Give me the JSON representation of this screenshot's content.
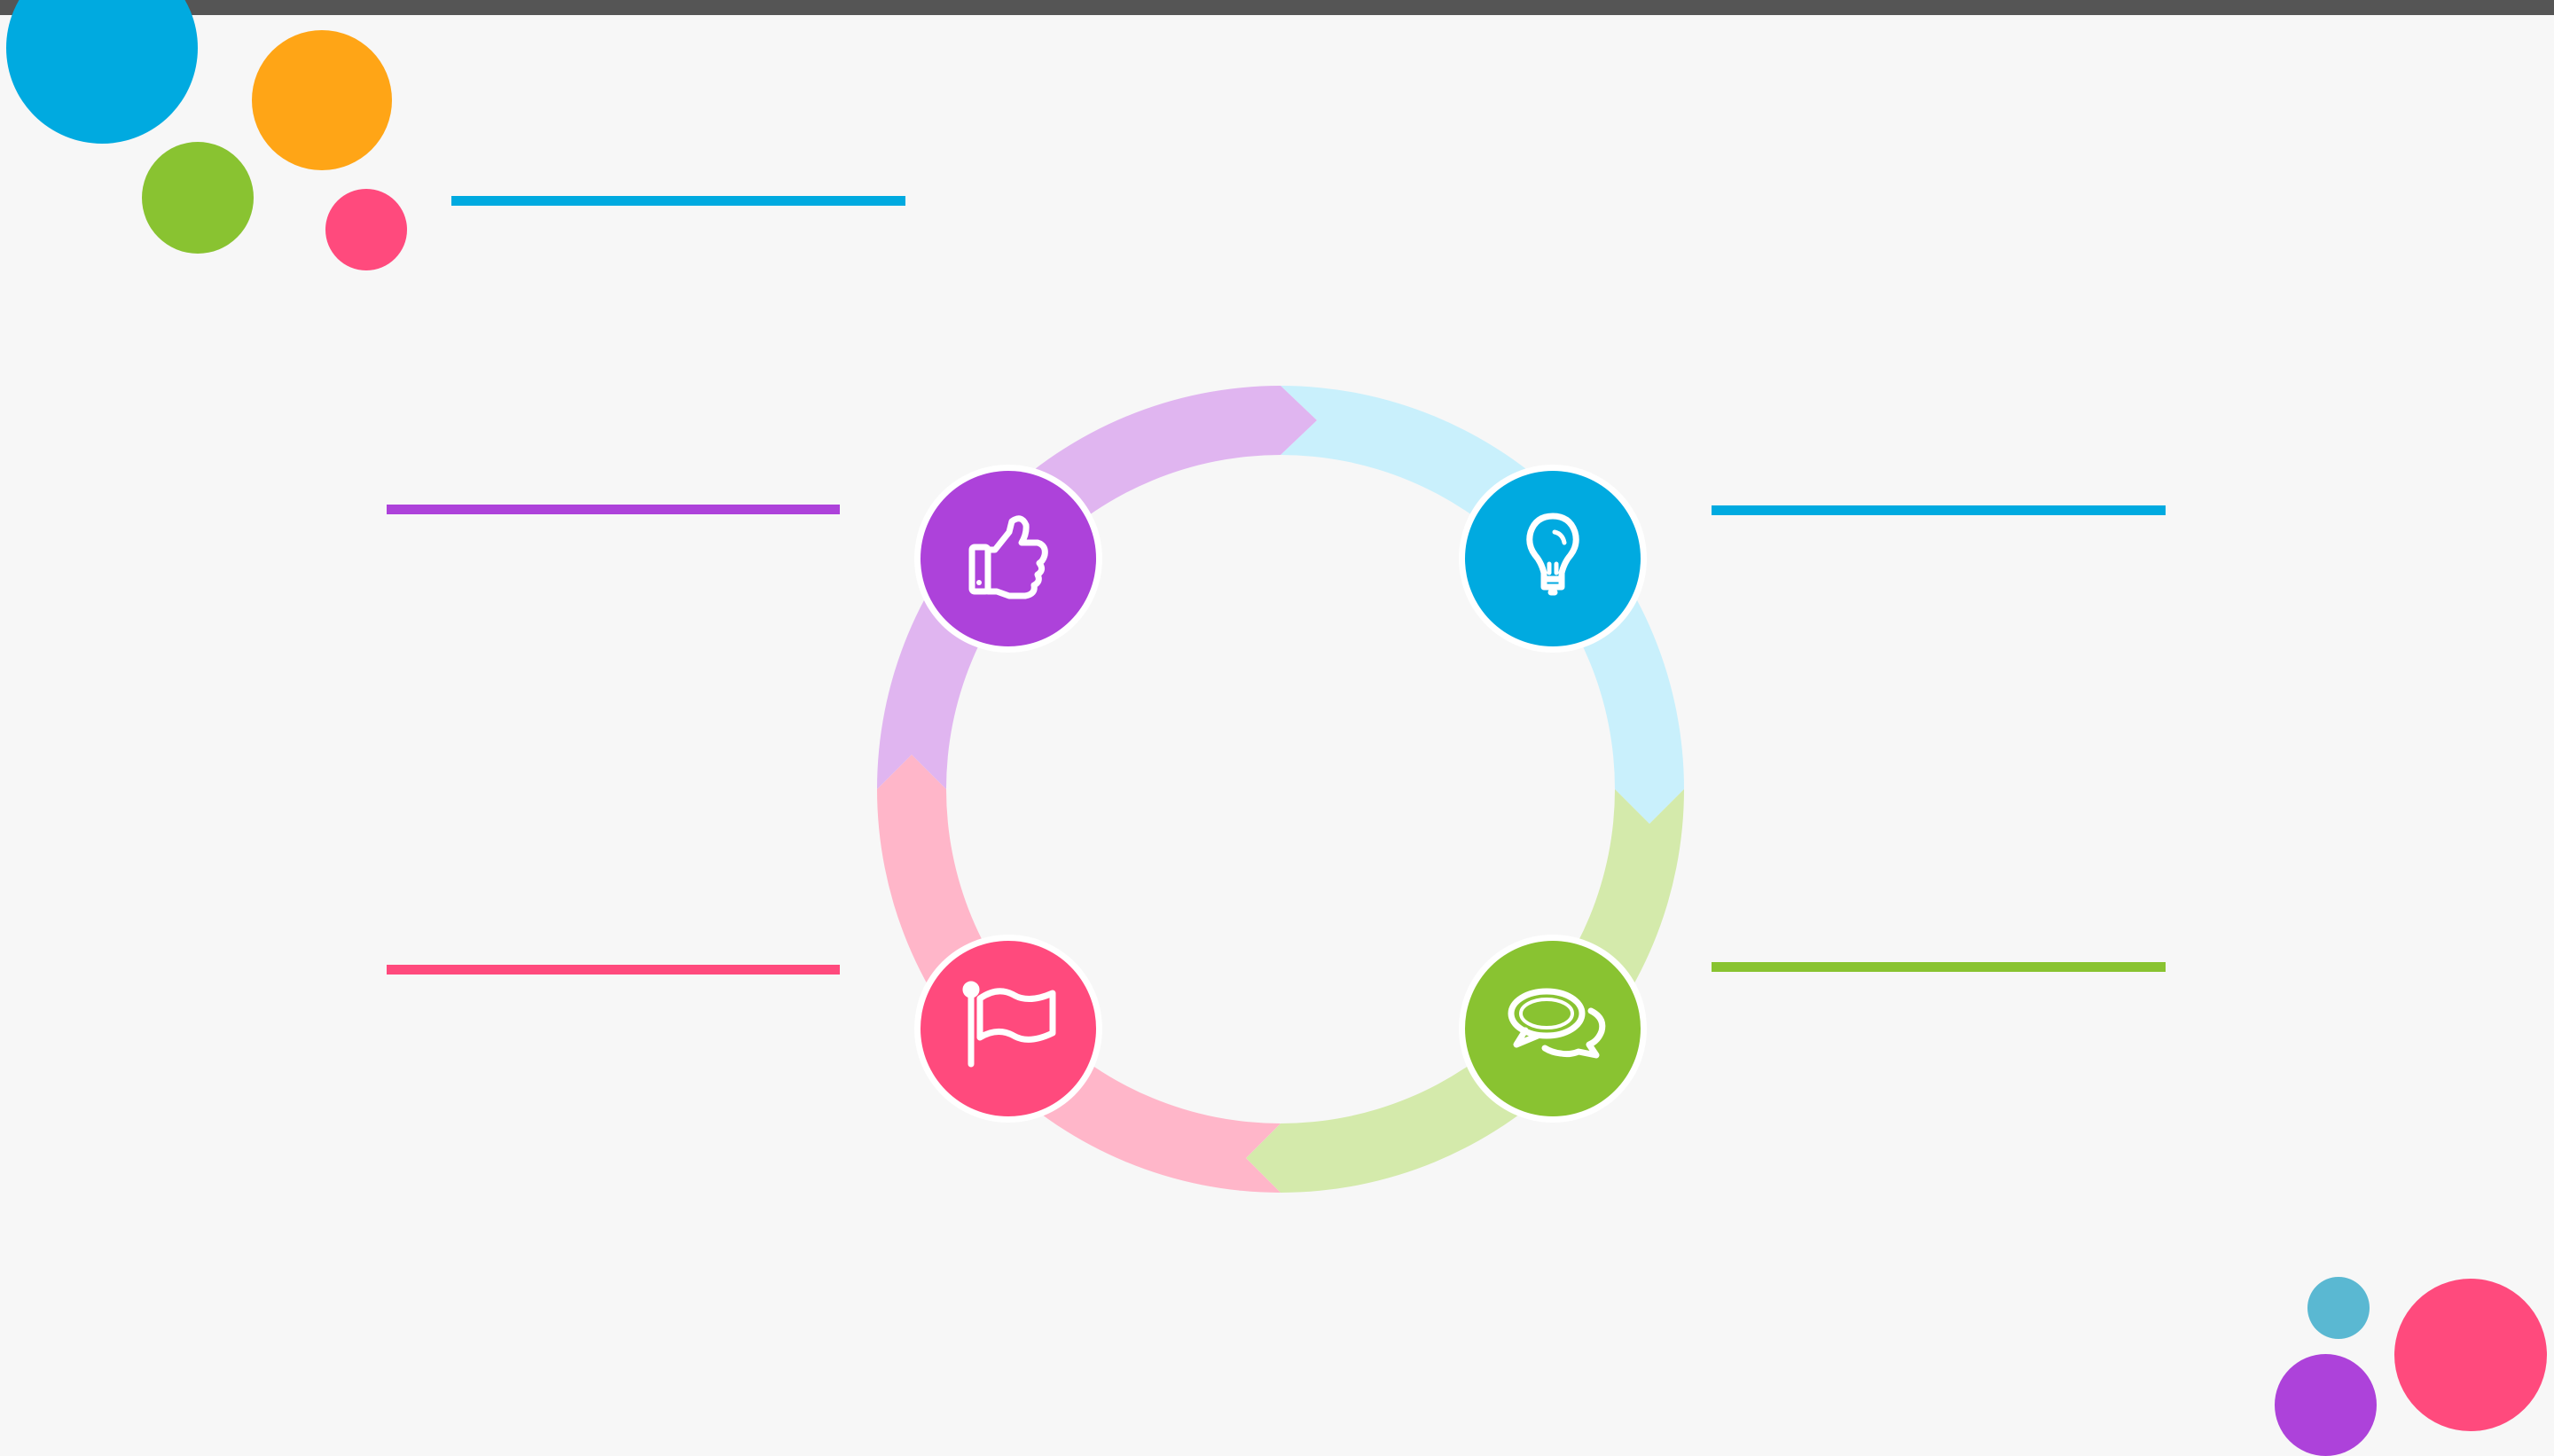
{
  "colors": {
    "background": "#f7f7f7",
    "top_bar": "#555555",
    "purple": "#ad42da",
    "purple_light": "#e0b5f0",
    "blue": "#00aae0",
    "blue_light": "#c9f0fc",
    "green": "#89c331",
    "green_light": "#d4eaab",
    "pink": "#ff4a7d",
    "pink_light": "#ffb6c9",
    "teal": "#5ab8d2",
    "orange": "#ffa516"
  },
  "decor": {
    "top_left_dots": [
      "blue",
      "orange",
      "green",
      "pink"
    ],
    "bottom_right_dots": [
      "teal",
      "pink",
      "purple"
    ]
  },
  "cycle": {
    "steps": [
      {
        "name": "approval",
        "icon": "thumbs-up-icon",
        "color": "purple",
        "segment_color": "purple_light"
      },
      {
        "name": "idea",
        "icon": "lightbulb-icon",
        "color": "blue",
        "segment_color": "blue_light"
      },
      {
        "name": "discussion",
        "icon": "speech-bubbles-icon",
        "color": "green",
        "segment_color": "green_light"
      },
      {
        "name": "goal",
        "icon": "flag-icon",
        "color": "pink",
        "segment_color": "pink_light"
      }
    ]
  }
}
